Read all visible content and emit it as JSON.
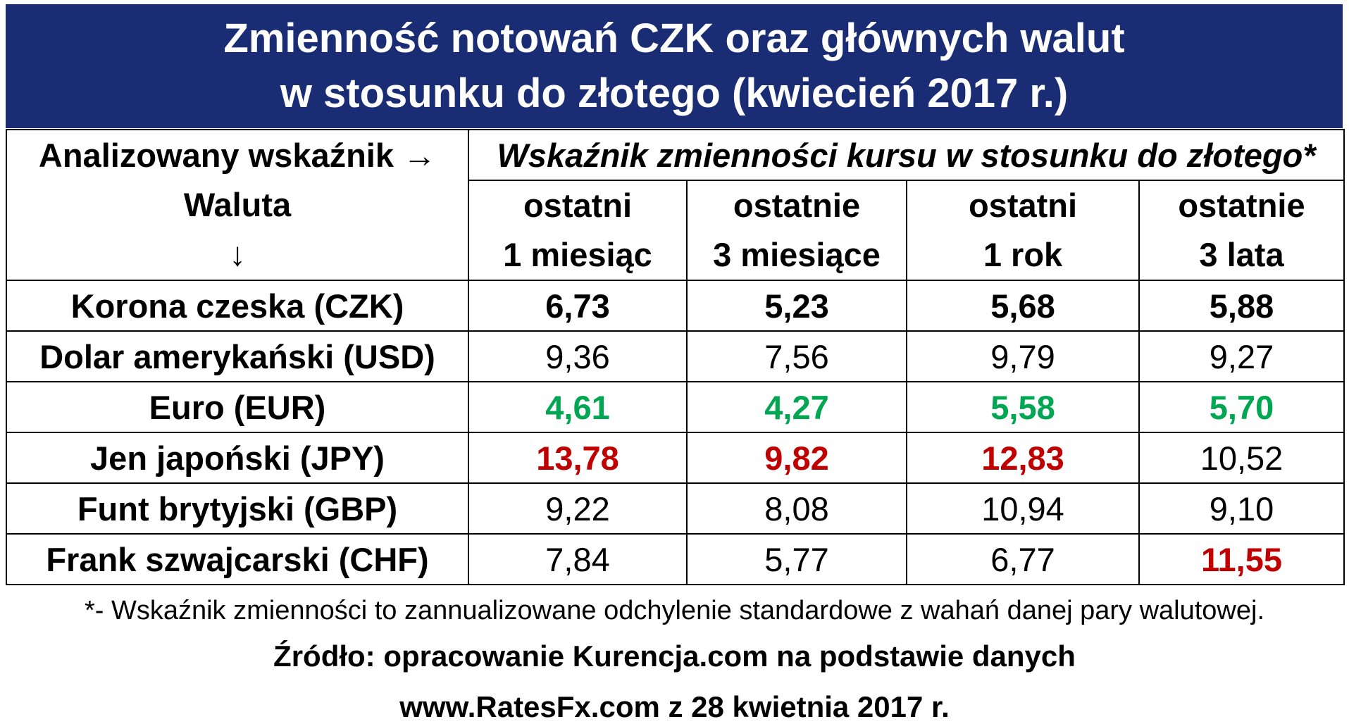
{
  "title": {
    "line1": "Zmienność notowań CZK oraz głównych walut",
    "line2": "w stosunku do złotego (kwiecień 2017 r.)"
  },
  "colors": {
    "title_bg": "#1a2d74",
    "title_text": "#ffffff",
    "green": "#00a651",
    "red": "#c00000",
    "black": "#000000"
  },
  "table": {
    "corner": {
      "line1": "Analizowany wskaźnik →",
      "line2": "Waluta",
      "line3": "↓"
    },
    "group_header": "Wskaźnik zmienności kursu w stosunku do złotego*",
    "periods": [
      {
        "line1": "ostatni",
        "line2": "1 miesiąc"
      },
      {
        "line1": "ostatnie",
        "line2": "3 miesiące"
      },
      {
        "line1": "ostatni",
        "line2": "1 rok"
      },
      {
        "line1": "ostatnie",
        "line2": "3 lata"
      }
    ]
  },
  "chart_data": {
    "type": "table",
    "title": "Zmienność notowań CZK oraz głównych walut w stosunku do złotego (kwiecień 2017 r.)",
    "columns": [
      "ostatni 1 miesiąc",
      "ostatnie 3 miesiące",
      "ostatni 1 rok",
      "ostatnie 3 lata"
    ],
    "rows": [
      {
        "name": "Korona czeska (CZK)",
        "values": [
          "6,73",
          "5,23",
          "5,68",
          "5,88"
        ],
        "style": [
          "bold",
          "bold",
          "bold",
          "bold"
        ]
      },
      {
        "name": "Dolar amerykański (USD)",
        "values": [
          "9,36",
          "7,56",
          "9,79",
          "9,27"
        ],
        "style": [
          "normal",
          "normal",
          "normal",
          "normal"
        ]
      },
      {
        "name": "Euro (EUR)",
        "values": [
          "4,61",
          "4,27",
          "5,58",
          "5,70"
        ],
        "style": [
          "green",
          "green",
          "green",
          "green"
        ]
      },
      {
        "name": "Jen japoński (JPY)",
        "values": [
          "13,78",
          "9,82",
          "12,83",
          "10,52"
        ],
        "style": [
          "red",
          "red",
          "red",
          "normal"
        ]
      },
      {
        "name": "Funt brytyjski (GBP)",
        "values": [
          "9,22",
          "8,08",
          "10,94",
          "9,10"
        ],
        "style": [
          "normal",
          "normal",
          "normal",
          "normal"
        ]
      },
      {
        "name": "Frank szwajcarski (CHF)",
        "values": [
          "7,84",
          "5,77",
          "6,77",
          "11,55"
        ],
        "style": [
          "normal",
          "normal",
          "normal",
          "red"
        ]
      }
    ]
  },
  "footer": {
    "note": "*- Wskaźnik zmienności to zannualizowane odchylenie standardowe z wahań danej pary walutowej.",
    "source1": "Źródło: opracowanie Kurencja.com na podstawie danych",
    "source2": "www.RatesFx.com z 28 kwietnia 2017 r."
  }
}
